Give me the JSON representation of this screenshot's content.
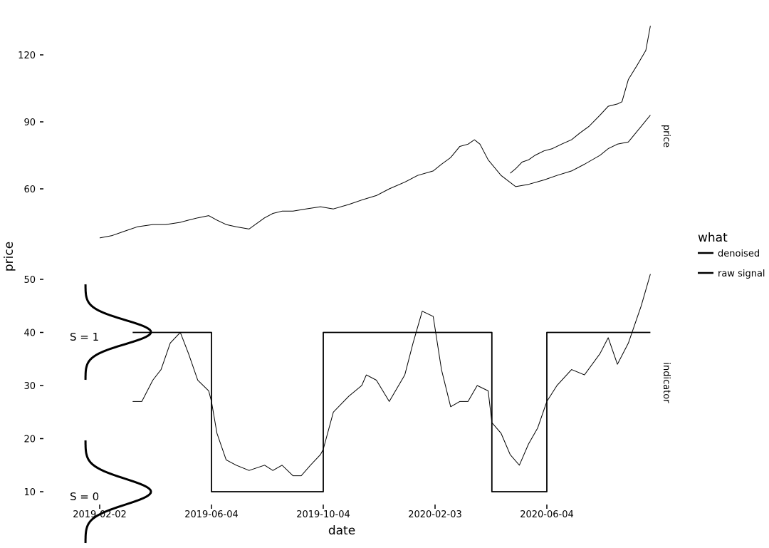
{
  "chart_data": {
    "type": "line",
    "xlabel": "date",
    "ylabel": "price",
    "x_ticks": [
      "2019-02-02",
      "2019-06-04",
      "2019-10-04",
      "2020-02-03",
      "2020-06-04"
    ],
    "legend": {
      "title": "what",
      "position": "right",
      "entries": [
        "denoised",
        "raw signal"
      ]
    },
    "panels": [
      {
        "strip": "price",
        "y_ticks": [
          60,
          90,
          120
        ],
        "ylim": [
          40,
          135
        ],
        "series": [
          {
            "name": "raw signal",
            "x": [
              "2019-02-02",
              "2019-02-15",
              "2019-03-01",
              "2019-03-15",
              "2019-04-01",
              "2019-04-15",
              "2019-05-01",
              "2019-05-10",
              "2019-05-20",
              "2019-06-01",
              "2019-06-10",
              "2019-06-20",
              "2019-07-01",
              "2019-07-15",
              "2019-08-01",
              "2019-08-10",
              "2019-08-20",
              "2019-09-01",
              "2019-09-15",
              "2019-10-01",
              "2019-10-15",
              "2019-11-01",
              "2019-11-15",
              "2019-12-01",
              "2019-12-15",
              "2020-01-01",
              "2020-01-15",
              "2020-02-01",
              "2020-02-10",
              "2020-02-20",
              "2020-03-01",
              "2020-03-10",
              "2020-03-17",
              "2020-03-23",
              "2020-04-01",
              "2020-04-15",
              "2020-05-01",
              "2020-05-15",
              "2020-06-01",
              "2020-06-15",
              "2020-07-01",
              "2020-07-15",
              "2020-08-01",
              "2020-08-10",
              "2020-08-20",
              "2020-09-01",
              "2020-09-15",
              "2020-09-25"
            ],
            "y": [
              38,
              39,
              41,
              43,
              44,
              44,
              45,
              46,
              47,
              48,
              46,
              44,
              43,
              42,
              47,
              49,
              50,
              50,
              51,
              52,
              51,
              53,
              55,
              57,
              60,
              63,
              66,
              68,
              71,
              74,
              79,
              80,
              82,
              80,
              73,
              66,
              61,
              62,
              64,
              66,
              68,
              71,
              75,
              78,
              80,
              81,
              88,
              93
            ]
          },
          {
            "name": "denoised",
            "x": [
              "2020-04-25",
              "2020-05-01",
              "2020-05-08",
              "2020-05-15",
              "2020-05-22",
              "2020-06-01",
              "2020-06-10",
              "2020-06-20",
              "2020-07-01",
              "2020-07-10",
              "2020-07-20",
              "2020-08-01",
              "2020-08-10",
              "2020-08-20",
              "2020-08-25",
              "2020-09-01",
              "2020-09-10",
              "2020-09-20",
              "2020-09-25"
            ],
            "y": [
              67,
              69,
              72,
              73,
              75,
              77,
              78,
              80,
              82,
              85,
              88,
              93,
              97,
              98,
              99,
              109,
              115,
              122,
              133
            ]
          }
        ]
      },
      {
        "strip": "indicator",
        "y_ticks": [
          10,
          20,
          30,
          40,
          50
        ],
        "ylim": [
          7,
          52
        ],
        "annotations": [
          "S = 1",
          "S = 0"
        ],
        "series": [
          {
            "name": "raw signal",
            "x": [
              "2019-03-10",
              "2019-03-20",
              "2019-04-01",
              "2019-04-10",
              "2019-04-20",
              "2019-05-01",
              "2019-05-10",
              "2019-05-20",
              "2019-06-01",
              "2019-06-04",
              "2019-06-10",
              "2019-06-20",
              "2019-07-01",
              "2019-07-15",
              "2019-08-01",
              "2019-08-10",
              "2019-08-20",
              "2019-09-01",
              "2019-09-10",
              "2019-09-20",
              "2019-10-01",
              "2019-10-04",
              "2019-10-15",
              "2019-11-01",
              "2019-11-15",
              "2019-11-20",
              "2019-12-01",
              "2019-12-15",
              "2020-01-01",
              "2020-01-10",
              "2020-01-20",
              "2020-02-01",
              "2020-02-10",
              "2020-02-20",
              "2020-03-01",
              "2020-03-10",
              "2020-03-20",
              "2020-04-01",
              "2020-04-05",
              "2020-04-15",
              "2020-04-25",
              "2020-05-05",
              "2020-05-15",
              "2020-05-25",
              "2020-06-04",
              "2020-06-15",
              "2020-07-01",
              "2020-07-15",
              "2020-08-01",
              "2020-08-10",
              "2020-08-20",
              "2020-09-01",
              "2020-09-15",
              "2020-09-25"
            ],
            "y": [
              27,
              27,
              31,
              33,
              38,
              40,
              36,
              31,
              29,
              27,
              21,
              16,
              15,
              14,
              15,
              14,
              15,
              13,
              13,
              15,
              17,
              18,
              25,
              28,
              30,
              32,
              31,
              27,
              32,
              38,
              44,
              43,
              33,
              26,
              27,
              27,
              30,
              29,
              23,
              21,
              17,
              15,
              19,
              22,
              27,
              30,
              33,
              32,
              36,
              39,
              34,
              38,
              45,
              51
            ]
          },
          {
            "name": "denoised",
            "x": [
              "2019-03-10",
              "2019-06-04",
              "2019-06-04",
              "2019-10-04",
              "2019-10-04",
              "2020-04-05",
              "2020-04-05",
              "2020-06-04",
              "2020-06-04",
              "2020-09-25"
            ],
            "y": [
              40,
              40,
              10,
              10,
              40,
              40,
              10,
              10,
              40,
              40
            ]
          }
        ]
      }
    ]
  }
}
